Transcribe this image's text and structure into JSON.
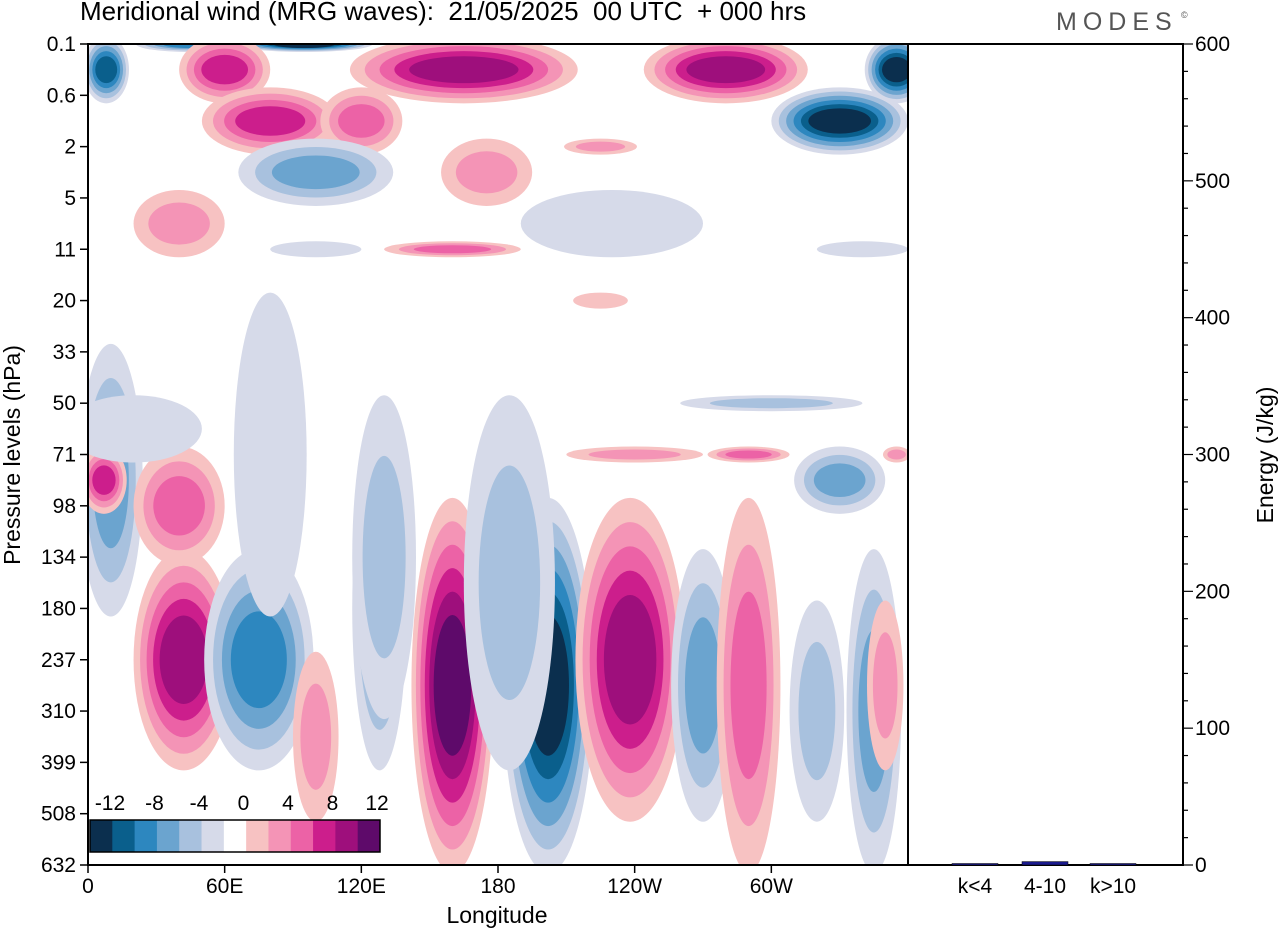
{
  "header": {
    "title": "Meridional wind (MRG waves):  21/05/2025  00 UTC  + 000 hrs",
    "brand": "MODES",
    "brand_mark": "©"
  },
  "colors": {
    "neg": [
      "#0b2f4e",
      "#0a5f8c",
      "#2d87bf",
      "#6ba4cf",
      "#a8c1de",
      "#d6dae9"
    ],
    "pos": [
      "#f7c2c2",
      "#f494b6",
      "#ec62a6",
      "#cc1e8c",
      "#9e0f7c",
      "#5e0a6a"
    ],
    "bar": "#1a1a8c"
  },
  "chart_data": [
    {
      "type": "heatmap",
      "title": "Meridional wind (MRG waves):  21/05/2025  00 UTC  + 000 hrs",
      "xlabel": "Longitude",
      "ylabel": "Pressure levels (hPa)",
      "x_ticks": [
        "0",
        "60E",
        "120E",
        "180",
        "120W",
        "60W"
      ],
      "y_ticks": [
        "0.1",
        "0.6",
        "2",
        "5",
        "11",
        "20",
        "33",
        "50",
        "71",
        "98",
        "134",
        "180",
        "237",
        "310",
        "399",
        "508",
        "632"
      ],
      "colorbar": {
        "labels": [
          "-12",
          "-8",
          "-4",
          "0",
          "4",
          "8",
          "12"
        ],
        "levels": [
          -14,
          -12,
          -10,
          -8,
          -6,
          -4,
          -2,
          2,
          4,
          6,
          8,
          10,
          12,
          14
        ]
      },
      "features": [
        {
          "lon": 160,
          "level": "237",
          "value": 14
        },
        {
          "lon": 202,
          "level": "180",
          "value": -14
        },
        {
          "lon": 240,
          "level": "180",
          "value": 10
        },
        {
          "lon": 75,
          "level": "180",
          "value": -8
        },
        {
          "lon": 42,
          "level": "180",
          "value": 10
        },
        {
          "lon": 128,
          "level": "180",
          "value": -6
        },
        {
          "lon": 285,
          "level": "134",
          "value": 6
        },
        {
          "lon": 112,
          "level": "0.1",
          "value": -12
        },
        {
          "lon": 345,
          "level": "0.6",
          "value": -12
        },
        {
          "lon": 280,
          "level": "0.1",
          "value": 10
        }
      ]
    },
    {
      "type": "bar",
      "categories": [
        "k<4",
        "4-10",
        "k>10"
      ],
      "values": [
        0,
        2.5,
        0
      ],
      "ylabel": "Energy (J/kg)",
      "ylim": [
        0,
        600
      ],
      "y_ticks": [
        "0",
        "100",
        "200",
        "300",
        "400",
        "500",
        "600"
      ]
    }
  ]
}
